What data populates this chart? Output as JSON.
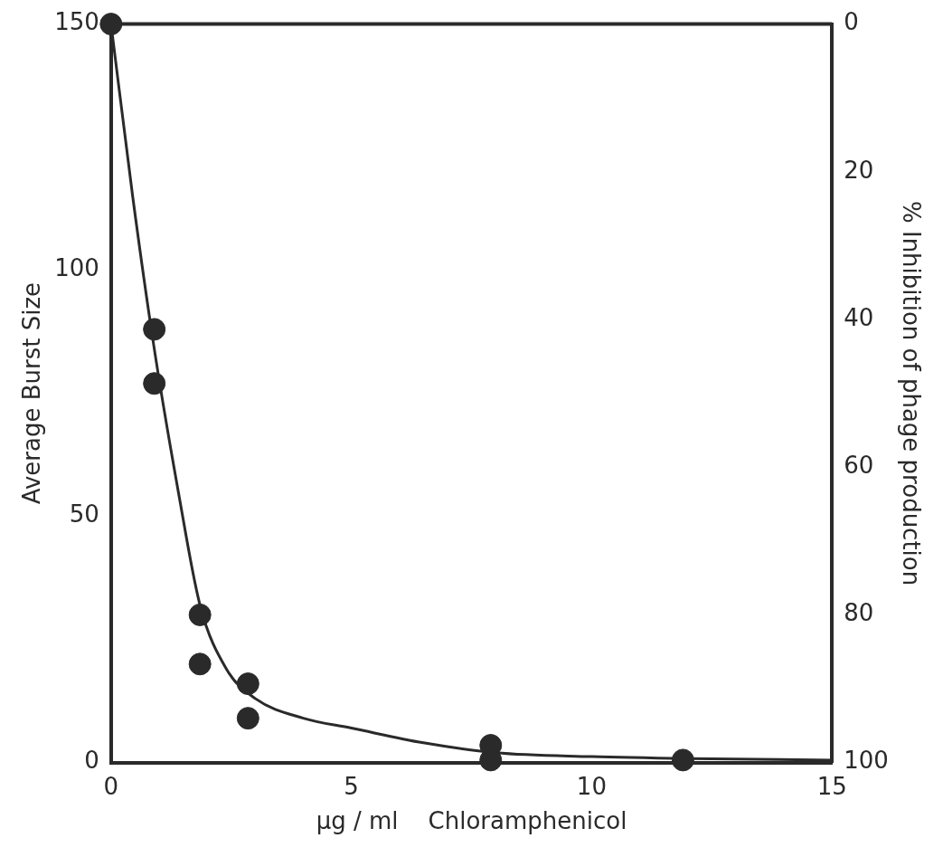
{
  "chart_data": {
    "type": "scatter",
    "xlabel": "µg / ml    Chloramphenicol",
    "ylabel": "Average Burst Size",
    "y2label": "% Inhibition of phage production",
    "xlim": [
      0,
      15
    ],
    "xticks": [
      0,
      5,
      10,
      15
    ],
    "ylim": [
      0,
      150
    ],
    "yticks": [
      0,
      50,
      100,
      150
    ],
    "y2lim": [
      100,
      0
    ],
    "y2ticks": [
      0,
      20,
      40,
      60,
      80,
      100
    ],
    "grid": false,
    "legend": false,
    "marker": "circle",
    "series": [
      {
        "type": "scatter",
        "color": "#2a2a2a",
        "x": [
          0,
          0.9,
          0.9,
          1.85,
          1.85,
          2.85,
          2.85,
          7.9,
          7.9,
          11.9
        ],
        "values": [
          150,
          88,
          77,
          30,
          20,
          16,
          9,
          3.5,
          0.5,
          0.5
        ]
      },
      {
        "type": "line",
        "color": "#2a2a2a",
        "marker": "none",
        "x": [
          0,
          0.45,
          0.9,
          1.4,
          1.85,
          2.4,
          3,
          4,
          5,
          6.5,
          8,
          10,
          12,
          15
        ],
        "values": [
          150,
          115,
          84,
          55,
          32,
          19,
          13,
          9,
          7,
          4,
          2,
          1.2,
          0.8,
          0.5
        ]
      }
    ]
  }
}
